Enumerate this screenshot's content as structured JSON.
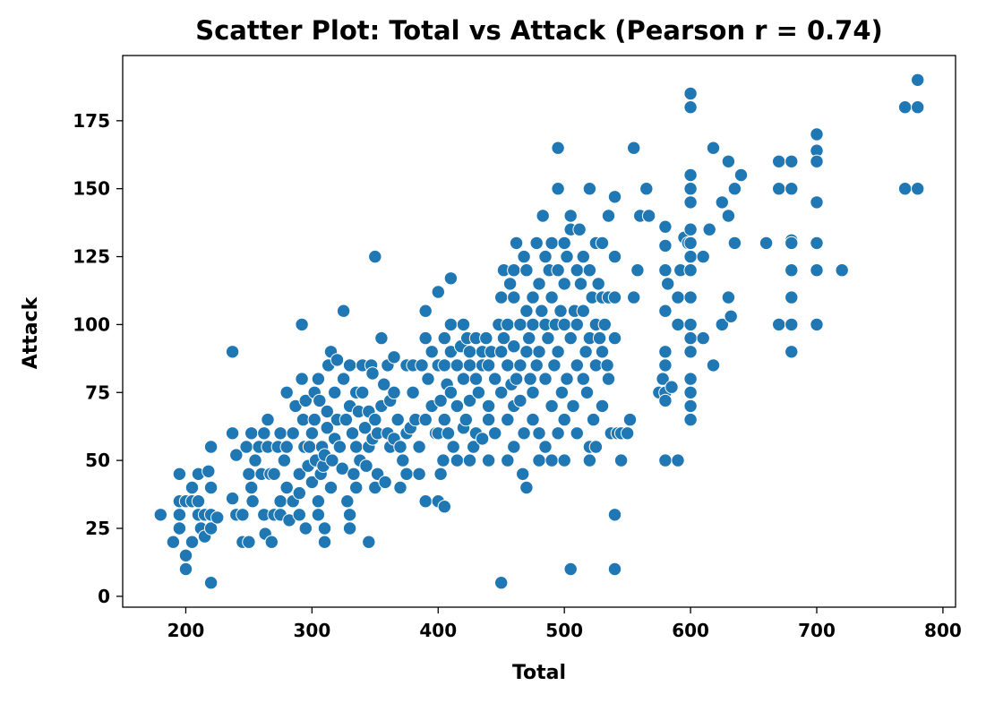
{
  "chart_data": {
    "type": "scatter",
    "title": "Scatter Plot: Total vs Attack (Pearson r = 0.74)",
    "xlabel": "Total",
    "ylabel": "Attack",
    "xlim": [
      150,
      810
    ],
    "ylim": [
      -4,
      199
    ],
    "xticks": [
      200,
      300,
      400,
      500,
      600,
      700,
      800
    ],
    "yticks": [
      0,
      25,
      50,
      75,
      100,
      125,
      150,
      175
    ],
    "grid": false,
    "color": "#1f77b4",
    "points": [
      [
        180,
        30
      ],
      [
        190,
        20
      ],
      [
        195,
        45
      ],
      [
        195,
        35
      ],
      [
        195,
        25
      ],
      [
        195,
        30
      ],
      [
        200,
        35
      ],
      [
        200,
        15
      ],
      [
        200,
        10
      ],
      [
        205,
        35
      ],
      [
        205,
        20
      ],
      [
        205,
        40
      ],
      [
        210,
        35
      ],
      [
        210,
        30
      ],
      [
        210,
        45
      ],
      [
        212,
        25
      ],
      [
        215,
        22
      ],
      [
        215,
        30
      ],
      [
        218,
        46
      ],
      [
        220,
        30
      ],
      [
        220,
        25
      ],
      [
        220,
        5
      ],
      [
        220,
        40
      ],
      [
        220,
        55
      ],
      [
        225,
        29
      ],
      [
        237,
        90
      ],
      [
        237,
        60
      ],
      [
        237,
        36
      ],
      [
        240,
        30
      ],
      [
        240,
        52
      ],
      [
        245,
        30
      ],
      [
        245,
        20
      ],
      [
        248,
        55
      ],
      [
        250,
        45
      ],
      [
        250,
        20
      ],
      [
        252,
        60
      ],
      [
        252,
        40
      ],
      [
        253,
        35
      ],
      [
        255,
        50
      ],
      [
        258,
        55
      ],
      [
        260,
        45
      ],
      [
        262,
        30
      ],
      [
        262,
        60
      ],
      [
        263,
        23
      ],
      [
        265,
        65
      ],
      [
        265,
        55
      ],
      [
        267,
        45
      ],
      [
        268,
        20
      ],
      [
        270,
        30
      ],
      [
        270,
        45
      ],
      [
        273,
        55
      ],
      [
        275,
        35
      ],
      [
        275,
        30
      ],
      [
        275,
        60
      ],
      [
        278,
        50
      ],
      [
        280,
        75
      ],
      [
        280,
        40
      ],
      [
        280,
        55
      ],
      [
        282,
        28
      ],
      [
        285,
        35
      ],
      [
        285,
        60
      ],
      [
        287,
        70
      ],
      [
        290,
        30
      ],
      [
        290,
        45
      ],
      [
        290,
        38
      ],
      [
        292,
        100
      ],
      [
        292,
        80
      ],
      [
        293,
        65
      ],
      [
        294,
        55
      ],
      [
        295,
        72
      ],
      [
        295,
        25
      ],
      [
        297,
        48
      ],
      [
        298,
        55
      ],
      [
        300,
        60
      ],
      [
        300,
        42
      ],
      [
        302,
        75
      ],
      [
        302,
        65
      ],
      [
        303,
        50
      ],
      [
        305,
        80
      ],
      [
        305,
        35
      ],
      [
        305,
        30
      ],
      [
        306,
        72
      ],
      [
        307,
        45
      ],
      [
        308,
        55
      ],
      [
        309,
        48
      ],
      [
        310,
        52
      ],
      [
        310,
        25
      ],
      [
        310,
        20
      ],
      [
        312,
        62
      ],
      [
        312,
        68
      ],
      [
        313,
        85
      ],
      [
        315,
        90
      ],
      [
        315,
        40
      ],
      [
        316,
        50
      ],
      [
        318,
        75
      ],
      [
        318,
        58
      ],
      [
        320,
        65
      ],
      [
        320,
        87
      ],
      [
        322,
        55
      ],
      [
        324,
        47
      ],
      [
        325,
        105
      ],
      [
        325,
        80
      ],
      [
        327,
        65
      ],
      [
        328,
        35
      ],
      [
        330,
        85
      ],
      [
        330,
        70
      ],
      [
        330,
        30
      ],
      [
        330,
        25
      ],
      [
        332,
        60
      ],
      [
        333,
        45
      ],
      [
        335,
        75
      ],
      [
        335,
        55
      ],
      [
        335,
        40
      ],
      [
        337,
        68
      ],
      [
        338,
        50
      ],
      [
        340,
        85
      ],
      [
        340,
        75
      ],
      [
        342,
        62
      ],
      [
        343,
        48
      ],
      [
        345,
        20
      ],
      [
        345,
        55
      ],
      [
        345,
        68
      ],
      [
        347,
        85
      ],
      [
        348,
        58
      ],
      [
        348,
        82
      ],
      [
        350,
        65
      ],
      [
        350,
        125
      ],
      [
        350,
        40
      ],
      [
        352,
        60
      ],
      [
        352,
        45
      ],
      [
        355,
        95
      ],
      [
        355,
        70
      ],
      [
        357,
        78
      ],
      [
        358,
        42
      ],
      [
        360,
        85
      ],
      [
        360,
        60
      ],
      [
        362,
        55
      ],
      [
        362,
        72
      ],
      [
        365,
        58
      ],
      [
        365,
        88
      ],
      [
        365,
        75
      ],
      [
        368,
        65
      ],
      [
        370,
        55
      ],
      [
        370,
        40
      ],
      [
        372,
        50
      ],
      [
        375,
        45
      ],
      [
        375,
        60
      ],
      [
        375,
        85
      ],
      [
        378,
        62
      ],
      [
        380,
        85
      ],
      [
        380,
        75
      ],
      [
        382,
        65
      ],
      [
        385,
        55
      ],
      [
        385,
        45
      ],
      [
        387,
        85
      ],
      [
        390,
        105
      ],
      [
        390,
        95
      ],
      [
        390,
        65
      ],
      [
        390,
        35
      ],
      [
        392,
        80
      ],
      [
        395,
        90
      ],
      [
        395,
        70
      ],
      [
        398,
        60
      ],
      [
        400,
        112
      ],
      [
        400,
        85
      ],
      [
        400,
        60
      ],
      [
        400,
        35
      ],
      [
        402,
        72
      ],
      [
        402,
        45
      ],
      [
        404,
        50
      ],
      [
        405,
        95
      ],
      [
        405,
        85
      ],
      [
        405,
        65
      ],
      [
        405,
        33
      ],
      [
        407,
        78
      ],
      [
        408,
        60
      ],
      [
        410,
        117
      ],
      [
        410,
        90
      ],
      [
        410,
        100
      ],
      [
        410,
        75
      ],
      [
        412,
        55
      ],
      [
        415,
        85
      ],
      [
        415,
        70
      ],
      [
        415,
        50
      ],
      [
        418,
        92
      ],
      [
        420,
        80
      ],
      [
        420,
        62
      ],
      [
        420,
        100
      ],
      [
        422,
        65
      ],
      [
        423,
        95
      ],
      [
        425,
        90
      ],
      [
        425,
        85
      ],
      [
        425,
        72
      ],
      [
        425,
        50
      ],
      [
        428,
        55
      ],
      [
        430,
        95
      ],
      [
        430,
        80
      ],
      [
        430,
        60
      ],
      [
        432,
        75
      ],
      [
        435,
        85
      ],
      [
        435,
        90
      ],
      [
        435,
        58
      ],
      [
        438,
        95
      ],
      [
        440,
        70
      ],
      [
        440,
        65
      ],
      [
        440,
        50
      ],
      [
        440,
        85
      ],
      [
        442,
        90
      ],
      [
        445,
        60
      ],
      [
        445,
        80
      ],
      [
        448,
        100
      ],
      [
        450,
        110
      ],
      [
        450,
        90
      ],
      [
        450,
        75
      ],
      [
        450,
        5
      ],
      [
        452,
        120
      ],
      [
        452,
        95
      ],
      [
        455,
        100
      ],
      [
        455,
        85
      ],
      [
        455,
        65
      ],
      [
        455,
        50
      ],
      [
        457,
        115
      ],
      [
        458,
        78
      ],
      [
        460,
        120
      ],
      [
        460,
        110
      ],
      [
        460,
        92
      ],
      [
        460,
        70
      ],
      [
        460,
        55
      ],
      [
        462,
        130
      ],
      [
        462,
        80
      ],
      [
        465,
        100
      ],
      [
        465,
        85
      ],
      [
        465,
        72
      ],
      [
        467,
        45
      ],
      [
        468,
        125
      ],
      [
        468,
        60
      ],
      [
        470,
        120
      ],
      [
        470,
        105
      ],
      [
        470,
        90
      ],
      [
        470,
        40
      ],
      [
        472,
        95
      ],
      [
        473,
        80
      ],
      [
        475,
        110
      ],
      [
        475,
        100
      ],
      [
        475,
        75
      ],
      [
        475,
        65
      ],
      [
        478,
        130
      ],
      [
        478,
        85
      ],
      [
        480,
        115
      ],
      [
        480,
        90
      ],
      [
        480,
        60
      ],
      [
        480,
        50
      ],
      [
        482,
        105
      ],
      [
        483,
        140
      ],
      [
        485,
        125
      ],
      [
        485,
        100
      ],
      [
        485,
        80
      ],
      [
        485,
        55
      ],
      [
        487,
        95
      ],
      [
        488,
        120
      ],
      [
        490,
        130
      ],
      [
        490,
        110
      ],
      [
        490,
        70
      ],
      [
        490,
        50
      ],
      [
        492,
        85
      ],
      [
        493,
        100
      ],
      [
        495,
        165
      ],
      [
        495,
        150
      ],
      [
        495,
        120
      ],
      [
        495,
        90
      ],
      [
        495,
        60
      ],
      [
        497,
        105
      ],
      [
        498,
        75
      ],
      [
        500,
        130
      ],
      [
        500,
        115
      ],
      [
        500,
        100
      ],
      [
        500,
        65
      ],
      [
        500,
        50
      ],
      [
        502,
        125
      ],
      [
        502,
        80
      ],
      [
        505,
        140
      ],
      [
        505,
        135
      ],
      [
        505,
        95
      ],
      [
        505,
        10
      ],
      [
        507,
        70
      ],
      [
        508,
        105
      ],
      [
        510,
        120
      ],
      [
        510,
        100
      ],
      [
        510,
        85
      ],
      [
        510,
        60
      ],
      [
        512,
        135
      ],
      [
        513,
        115
      ],
      [
        515,
        125
      ],
      [
        515,
        105
      ],
      [
        515,
        80
      ],
      [
        517,
        90
      ],
      [
        518,
        75
      ],
      [
        520,
        150
      ],
      [
        520,
        120
      ],
      [
        520,
        95
      ],
      [
        520,
        55
      ],
      [
        520,
        50
      ],
      [
        522,
        110
      ],
      [
        523,
        65
      ],
      [
        525,
        130
      ],
      [
        525,
        100
      ],
      [
        525,
        85
      ],
      [
        525,
        55
      ],
      [
        527,
        115
      ],
      [
        528,
        95
      ],
      [
        530,
        130
      ],
      [
        530,
        110
      ],
      [
        530,
        90
      ],
      [
        530,
        70
      ],
      [
        532,
        100
      ],
      [
        534,
        85
      ],
      [
        535,
        140
      ],
      [
        535,
        110
      ],
      [
        535,
        80
      ],
      [
        537,
        60
      ],
      [
        540,
        147
      ],
      [
        540,
        125
      ],
      [
        540,
        110
      ],
      [
        540,
        95
      ],
      [
        540,
        30
      ],
      [
        540,
        10
      ],
      [
        542,
        60
      ],
      [
        545,
        60
      ],
      [
        545,
        50
      ],
      [
        550,
        60
      ],
      [
        552,
        65
      ],
      [
        555,
        165
      ],
      [
        555,
        110
      ],
      [
        558,
        120
      ],
      [
        560,
        140
      ],
      [
        565,
        150
      ],
      [
        567,
        140
      ],
      [
        575,
        75
      ],
      [
        578,
        80
      ],
      [
        580,
        136
      ],
      [
        580,
        129
      ],
      [
        580,
        120
      ],
      [
        580,
        105
      ],
      [
        580,
        90
      ],
      [
        580,
        85
      ],
      [
        580,
        75
      ],
      [
        580,
        72
      ],
      [
        580,
        50
      ],
      [
        582,
        115
      ],
      [
        585,
        77
      ],
      [
        590,
        110
      ],
      [
        590,
        100
      ],
      [
        590,
        50
      ],
      [
        592,
        120
      ],
      [
        595,
        132
      ],
      [
        598,
        130
      ],
      [
        600,
        185
      ],
      [
        600,
        180
      ],
      [
        600,
        155
      ],
      [
        600,
        150
      ],
      [
        600,
        145
      ],
      [
        600,
        135
      ],
      [
        600,
        130
      ],
      [
        600,
        125
      ],
      [
        600,
        120
      ],
      [
        600,
        110
      ],
      [
        600,
        100
      ],
      [
        600,
        95
      ],
      [
        600,
        90
      ],
      [
        600,
        80
      ],
      [
        600,
        75
      ],
      [
        600,
        70
      ],
      [
        600,
        65
      ],
      [
        610,
        95
      ],
      [
        610,
        125
      ],
      [
        615,
        135
      ],
      [
        618,
        165
      ],
      [
        618,
        85
      ],
      [
        625,
        100
      ],
      [
        625,
        145
      ],
      [
        630,
        160
      ],
      [
        630,
        140
      ],
      [
        630,
        110
      ],
      [
        632,
        103
      ],
      [
        635,
        150
      ],
      [
        635,
        130
      ],
      [
        640,
        155
      ],
      [
        660,
        130
      ],
      [
        670,
        160
      ],
      [
        670,
        150
      ],
      [
        670,
        100
      ],
      [
        680,
        160
      ],
      [
        680,
        150
      ],
      [
        680,
        131
      ],
      [
        680,
        130
      ],
      [
        680,
        120
      ],
      [
        680,
        110
      ],
      [
        680,
        100
      ],
      [
        680,
        90
      ],
      [
        700,
        170
      ],
      [
        700,
        164
      ],
      [
        700,
        160
      ],
      [
        700,
        145
      ],
      [
        700,
        130
      ],
      [
        700,
        120
      ],
      [
        700,
        100
      ],
      [
        720,
        120
      ],
      [
        770,
        180
      ],
      [
        770,
        150
      ],
      [
        780,
        190
      ],
      [
        780,
        180
      ],
      [
        780,
        150
      ]
    ]
  }
}
